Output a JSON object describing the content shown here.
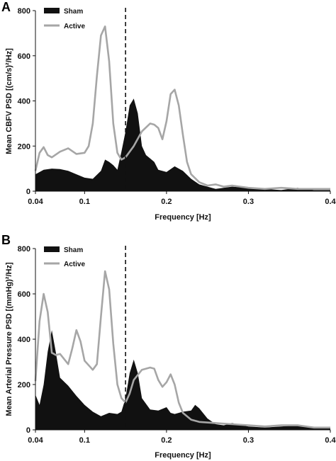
{
  "colors": {
    "sham": "#111111",
    "active": "#a6a6a6",
    "axis": "#111111",
    "vline": "#111111"
  },
  "chart_data": [
    {
      "type": "area",
      "panel": "A",
      "xlabel": "Frequency [Hz]",
      "ylabel": "Mean CBFV PSD [(cm/s)²/Hz]",
      "ylim": [
        0,
        800
      ],
      "yticks": [
        "0",
        "200",
        "400",
        "600",
        "800"
      ],
      "xticks": [
        "0.04",
        "0.1",
        "0.2",
        "0.3",
        "0.4"
      ],
      "xtick_values": [
        0.04,
        0.1,
        0.2,
        0.3,
        0.4
      ],
      "xlim": [
        0.04,
        0.4
      ],
      "vline_x": 0.15,
      "legend": {
        "placement": "top-left",
        "entries": [
          "Sham",
          "Active"
        ]
      },
      "series": [
        {
          "name": "Sham",
          "style": "filled",
          "points": [
            [
              0.04,
              75
            ],
            [
              0.05,
              95
            ],
            [
              0.06,
              100
            ],
            [
              0.07,
              98
            ],
            [
              0.08,
              90
            ],
            [
              0.09,
              75
            ],
            [
              0.1,
              60
            ],
            [
              0.11,
              55
            ],
            [
              0.12,
              90
            ],
            [
              0.125,
              140
            ],
            [
              0.13,
              130
            ],
            [
              0.135,
              115
            ],
            [
              0.14,
              95
            ],
            [
              0.145,
              175
            ],
            [
              0.15,
              265
            ],
            [
              0.155,
              380
            ],
            [
              0.16,
              410
            ],
            [
              0.165,
              345
            ],
            [
              0.17,
              200
            ],
            [
              0.175,
              160
            ],
            [
              0.18,
              145
            ],
            [
              0.185,
              130
            ],
            [
              0.19,
              95
            ],
            [
              0.2,
              85
            ],
            [
              0.21,
              110
            ],
            [
              0.22,
              90
            ],
            [
              0.23,
              55
            ],
            [
              0.24,
              30
            ],
            [
              0.26,
              10
            ],
            [
              0.28,
              20
            ],
            [
              0.3,
              15
            ],
            [
              0.32,
              10
            ],
            [
              0.34,
              5
            ],
            [
              0.36,
              15
            ],
            [
              0.38,
              5
            ],
            [
              0.4,
              5
            ]
          ]
        },
        {
          "name": "Active",
          "style": "line",
          "points": [
            [
              0.04,
              90
            ],
            [
              0.045,
              170
            ],
            [
              0.05,
              195
            ],
            [
              0.055,
              160
            ],
            [
              0.06,
              150
            ],
            [
              0.07,
              175
            ],
            [
              0.08,
              190
            ],
            [
              0.09,
              165
            ],
            [
              0.1,
              170
            ],
            [
              0.105,
              200
            ],
            [
              0.11,
              300
            ],
            [
              0.115,
              510
            ],
            [
              0.12,
              690
            ],
            [
              0.125,
              730
            ],
            [
              0.13,
              575
            ],
            [
              0.135,
              300
            ],
            [
              0.14,
              170
            ],
            [
              0.145,
              140
            ],
            [
              0.15,
              150
            ],
            [
              0.16,
              200
            ],
            [
              0.17,
              265
            ],
            [
              0.18,
              300
            ],
            [
              0.185,
              295
            ],
            [
              0.19,
              280
            ],
            [
              0.195,
              230
            ],
            [
              0.2,
              310
            ],
            [
              0.205,
              430
            ],
            [
              0.21,
              450
            ],
            [
              0.215,
              380
            ],
            [
              0.22,
              250
            ],
            [
              0.225,
              130
            ],
            [
              0.23,
              75
            ],
            [
              0.24,
              40
            ],
            [
              0.25,
              25
            ],
            [
              0.26,
              30
            ],
            [
              0.27,
              20
            ],
            [
              0.28,
              25
            ],
            [
              0.3,
              15
            ],
            [
              0.32,
              10
            ],
            [
              0.34,
              15
            ],
            [
              0.36,
              10
            ],
            [
              0.38,
              10
            ],
            [
              0.4,
              10
            ]
          ]
        }
      ]
    },
    {
      "type": "area",
      "panel": "B",
      "xlabel": "Frequency [Hz]",
      "ylabel": "Mean Arterial Pressure PSD [(mmHg)²/Hz]",
      "ylim": [
        0,
        800
      ],
      "yticks": [
        "0",
        "200",
        "400",
        "600",
        "800"
      ],
      "xticks": [
        "0.04",
        "0.1",
        "0.2",
        "0.3",
        "0.4"
      ],
      "xtick_values": [
        0.04,
        0.1,
        0.2,
        0.3,
        0.4
      ],
      "xlim": [
        0.04,
        0.4
      ],
      "vline_x": 0.15,
      "legend": {
        "placement": "top-left",
        "entries": [
          "Sham",
          "Active"
        ]
      },
      "series": [
        {
          "name": "Sham",
          "style": "filled",
          "points": [
            [
              0.04,
              155
            ],
            [
              0.045,
              110
            ],
            [
              0.05,
              200
            ],
            [
              0.055,
              345
            ],
            [
              0.06,
              440
            ],
            [
              0.065,
              340
            ],
            [
              0.07,
              230
            ],
            [
              0.08,
              195
            ],
            [
              0.09,
              150
            ],
            [
              0.1,
              110
            ],
            [
              0.11,
              80
            ],
            [
              0.12,
              60
            ],
            [
              0.13,
              75
            ],
            [
              0.14,
              70
            ],
            [
              0.145,
              80
            ],
            [
              0.15,
              140
            ],
            [
              0.155,
              250
            ],
            [
              0.16,
              310
            ],
            [
              0.165,
              250
            ],
            [
              0.17,
              140
            ],
            [
              0.18,
              90
            ],
            [
              0.19,
              85
            ],
            [
              0.2,
              100
            ],
            [
              0.205,
              75
            ],
            [
              0.21,
              70
            ],
            [
              0.22,
              80
            ],
            [
              0.23,
              85
            ],
            [
              0.235,
              110
            ],
            [
              0.24,
              95
            ],
            [
              0.25,
              50
            ],
            [
              0.26,
              25
            ],
            [
              0.27,
              20
            ],
            [
              0.28,
              30
            ],
            [
              0.3,
              15
            ],
            [
              0.32,
              10
            ],
            [
              0.34,
              15
            ],
            [
              0.36,
              20
            ],
            [
              0.38,
              10
            ],
            [
              0.4,
              10
            ]
          ]
        },
        {
          "name": "Active",
          "style": "line",
          "points": [
            [
              0.04,
              215
            ],
            [
              0.045,
              480
            ],
            [
              0.05,
              600
            ],
            [
              0.055,
              520
            ],
            [
              0.06,
              340
            ],
            [
              0.065,
              330
            ],
            [
              0.07,
              335
            ],
            [
              0.08,
              290
            ],
            [
              0.085,
              360
            ],
            [
              0.09,
              440
            ],
            [
              0.095,
              390
            ],
            [
              0.1,
              305
            ],
            [
              0.11,
              265
            ],
            [
              0.115,
              290
            ],
            [
              0.12,
              500
            ],
            [
              0.125,
              700
            ],
            [
              0.13,
              620
            ],
            [
              0.135,
              380
            ],
            [
              0.14,
              200
            ],
            [
              0.145,
              140
            ],
            [
              0.15,
              120
            ],
            [
              0.155,
              160
            ],
            [
              0.16,
              220
            ],
            [
              0.17,
              265
            ],
            [
              0.18,
              275
            ],
            [
              0.185,
              270
            ],
            [
              0.19,
              220
            ],
            [
              0.195,
              190
            ],
            [
              0.2,
              210
            ],
            [
              0.205,
              245
            ],
            [
              0.21,
              200
            ],
            [
              0.215,
              120
            ],
            [
              0.22,
              75
            ],
            [
              0.23,
              45
            ],
            [
              0.24,
              35
            ],
            [
              0.26,
              30
            ],
            [
              0.28,
              25
            ],
            [
              0.3,
              20
            ],
            [
              0.32,
              15
            ],
            [
              0.34,
              20
            ],
            [
              0.36,
              20
            ],
            [
              0.38,
              10
            ],
            [
              0.4,
              10
            ]
          ]
        }
      ]
    }
  ]
}
